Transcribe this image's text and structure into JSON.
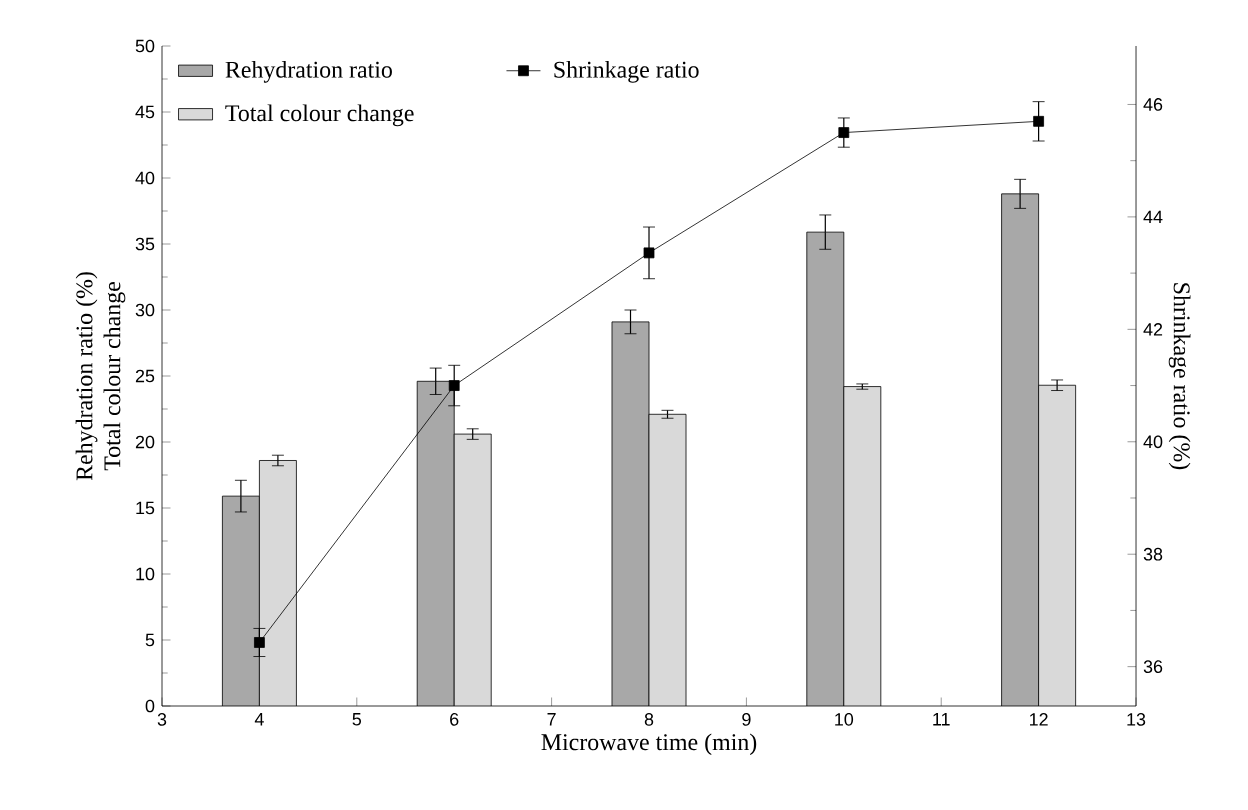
{
  "chart_data": {
    "type": "bar",
    "xlabel": "Microwave time (min)",
    "ylabel": "Rehydration ratio (%)\nTotal colour change",
    "y2label": "Shrinkage ratio (%)",
    "x": [
      4,
      6,
      8,
      10,
      12
    ],
    "series": [
      {
        "name": "Rehydration ratio",
        "color": "#a8a8a8",
        "values": [
          15.9,
          24.6,
          29.1,
          35.9,
          38.8
        ],
        "errors": [
          1.2,
          1.0,
          0.9,
          1.3,
          1.1
        ]
      },
      {
        "name": "Total colour change",
        "color": "#d9d9d9",
        "values": [
          18.6,
          20.6,
          22.1,
          24.2,
          24.3
        ],
        "errors": [
          0.4,
          0.4,
          0.3,
          0.2,
          0.4
        ]
      },
      {
        "name": "Shrinkage ratio",
        "type": "line",
        "axis": "y2",
        "color": "#000000",
        "marker": "square",
        "values": [
          36.43,
          41.0,
          43.36,
          45.5,
          45.7
        ],
        "errors": [
          0.25,
          0.36,
          0.46,
          0.26,
          0.35
        ]
      }
    ],
    "xlim": [
      3,
      13
    ],
    "xticks": [
      3,
      4,
      5,
      6,
      7,
      8,
      9,
      10,
      11,
      12,
      13
    ],
    "ylim": [
      0,
      50
    ],
    "yticks": [
      0,
      5,
      10,
      15,
      20,
      25,
      30,
      35,
      40,
      45,
      50
    ],
    "y2lim": [
      35.3,
      47.04
    ],
    "y2ticks": [
      36,
      38,
      40,
      42,
      44,
      46
    ],
    "grid": false,
    "legend": "top"
  }
}
